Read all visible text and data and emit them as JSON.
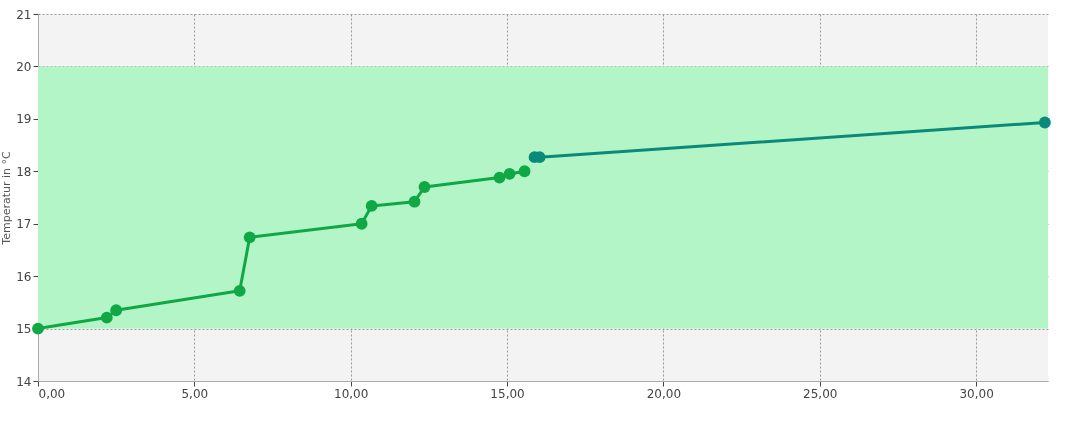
{
  "chart_data": {
    "type": "line",
    "ylabel": "Temperatur in °C",
    "xlim": [
      0,
      32.3
    ],
    "ylim": [
      14,
      21
    ],
    "xticks": [
      {
        "value": 0,
        "label": "0,00"
      },
      {
        "value": 5,
        "label": "5,00"
      },
      {
        "value": 10,
        "label": "10,00"
      },
      {
        "value": 15,
        "label": "15,00"
      },
      {
        "value": 20,
        "label": "20,00"
      },
      {
        "value": 25,
        "label": "25,00"
      },
      {
        "value": 30,
        "label": "30,00"
      }
    ],
    "yticks": [
      14,
      15,
      16,
      17,
      18,
      19,
      20,
      21
    ],
    "grid": true,
    "marker": "circle",
    "line_style": "solid",
    "bands": [
      {
        "axis": "y",
        "from": 15,
        "to": 20,
        "color": "#b3f5c6"
      }
    ],
    "series": [
      {
        "color": "#10a844",
        "x": [
          0,
          2.2,
          2.5,
          6.45,
          6.77,
          10.35,
          10.67,
          12.04,
          12.36,
          14.76,
          15.08,
          15.56
        ],
        "values": [
          15.0,
          15.21,
          15.35,
          15.72,
          16.74,
          17.0,
          17.34,
          17.42,
          17.7,
          17.88,
          17.95,
          18.0
        ]
      },
      {
        "color": "#0a8a7a",
        "x": [
          15.88,
          16.04,
          32.2
        ],
        "values": [
          18.27,
          18.27,
          18.93
        ]
      }
    ]
  }
}
